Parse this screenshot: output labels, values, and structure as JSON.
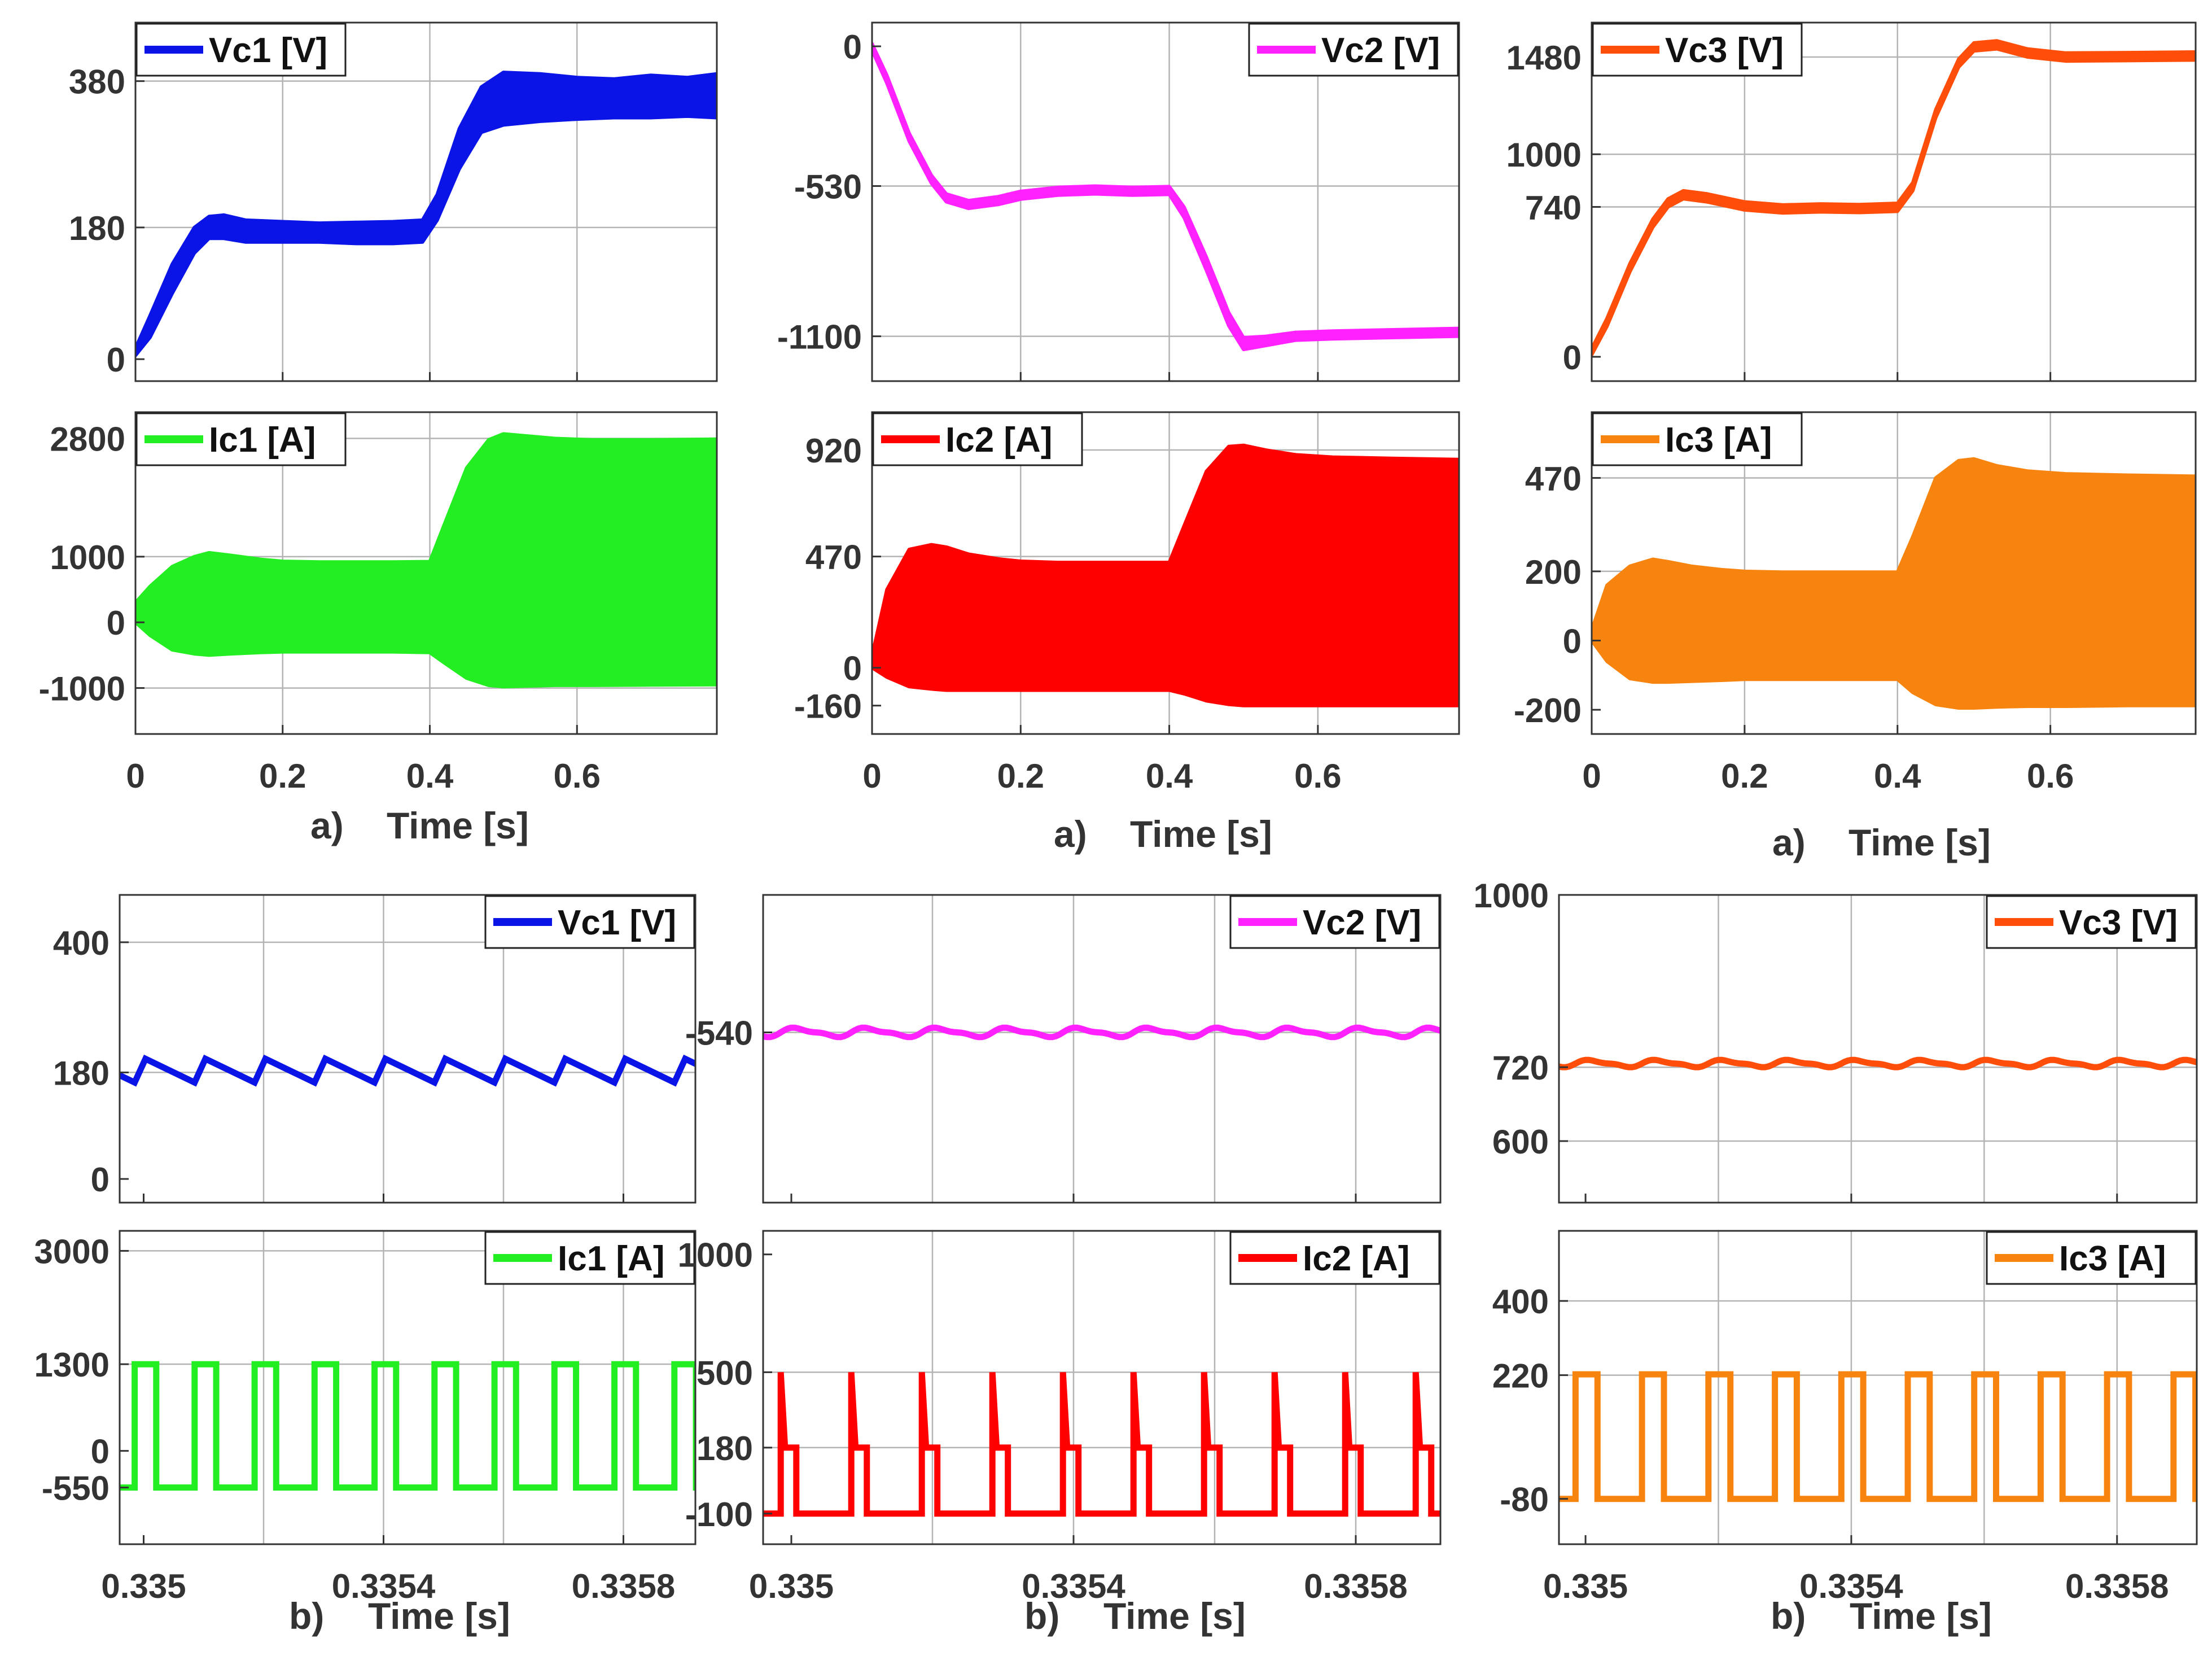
{
  "chart_data": [
    {
      "id": "a-vc1",
      "type": "line",
      "series": [
        {
          "name": "Vc1 [V]",
          "color": "#0a14e6",
          "kind": "envelope"
        }
      ],
      "ylim": [
        -30,
        460
      ],
      "xlim": [
        0,
        0.79
      ],
      "xticks": [
        0,
        0.2,
        0.4,
        0.6
      ],
      "xtick_labels": [
        "0",
        "0.2",
        "0.4",
        "0.6"
      ],
      "yticks": [
        0,
        180,
        380
      ],
      "ytick_labels": [
        "0",
        "180",
        "380"
      ],
      "x_grid": [
        0.2,
        0.4,
        0.6
      ],
      "y_grid": [
        180,
        380
      ],
      "legend": "top-left",
      "envelope": {
        "x": [
          0,
          0.02,
          0.05,
          0.08,
          0.1,
          0.12,
          0.15,
          0.2,
          0.25,
          0.3,
          0.35,
          0.39,
          0.41,
          0.44,
          0.47,
          0.5,
          0.55,
          0.6,
          0.65,
          0.7,
          0.75,
          0.79
        ],
        "lo": [
          5,
          30,
          90,
          145,
          165,
          165,
          160,
          160,
          160,
          158,
          158,
          160,
          190,
          260,
          310,
          320,
          325,
          328,
          330,
          330,
          332,
          330
        ],
        "hi": [
          15,
          60,
          130,
          180,
          195,
          197,
          190,
          188,
          186,
          187,
          188,
          190,
          225,
          315,
          372,
          392,
          390,
          385,
          383,
          388,
          385,
          390
        ]
      }
    },
    {
      "id": "a-vc2",
      "type": "line",
      "series": [
        {
          "name": "Vc2 [V]",
          "color": "#ff22ff",
          "kind": "envelope"
        }
      ],
      "ylim": [
        -1270,
        90
      ],
      "xlim": [
        0,
        0.79
      ],
      "xticks": [
        0,
        0.2,
        0.4,
        0.6
      ],
      "xtick_labels": [
        "0",
        "0.2",
        "0.4",
        "0.6"
      ],
      "yticks": [
        -1100,
        -530,
        0
      ],
      "ytick_labels": [
        "-1100",
        "-530",
        "0"
      ],
      "x_grid": [
        0.2,
        0.4,
        0.6
      ],
      "y_grid": [
        -530,
        -1100
      ],
      "legend": "top-right",
      "envelope": {
        "x": [
          0,
          0.02,
          0.05,
          0.08,
          0.1,
          0.13,
          0.17,
          0.2,
          0.25,
          0.3,
          0.35,
          0.4,
          0.42,
          0.45,
          0.48,
          0.5,
          0.53,
          0.57,
          0.62,
          0.7,
          0.79
        ],
        "lo": [
          -15,
          -140,
          -360,
          -520,
          -590,
          -615,
          -600,
          -580,
          -565,
          -560,
          -565,
          -562,
          -650,
          -850,
          -1060,
          -1150,
          -1135,
          -1115,
          -1110,
          -1105,
          -1100
        ],
        "hi": [
          10,
          -110,
          -330,
          -490,
          -560,
          -585,
          -570,
          -550,
          -535,
          -530,
          -535,
          -532,
          -610,
          -800,
          -1010,
          -1105,
          -1100,
          -1085,
          -1080,
          -1075,
          -1070
        ]
      }
    },
    {
      "id": "a-vc3",
      "type": "line",
      "series": [
        {
          "name": "Vc3 [V]",
          "color": "#ff4d0a",
          "kind": "envelope"
        }
      ],
      "ylim": [
        -120,
        1650
      ],
      "xlim": [
        0,
        0.79
      ],
      "xticks": [
        0,
        0.2,
        0.4,
        0.6
      ],
      "xtick_labels": [
        "0",
        "0.2",
        "0.4",
        "0.6"
      ],
      "yticks": [
        0,
        740,
        1000,
        1480
      ],
      "ytick_labels": [
        "0",
        "740",
        "1000",
        "1480"
      ],
      "x_grid": [
        0.2,
        0.4,
        0.6
      ],
      "y_grid": [
        740,
        1000,
        1480
      ],
      "legend": "top-left",
      "envelope": {
        "x": [
          0,
          0.02,
          0.05,
          0.08,
          0.1,
          0.12,
          0.15,
          0.2,
          0.25,
          0.3,
          0.35,
          0.4,
          0.42,
          0.45,
          0.48,
          0.5,
          0.53,
          0.57,
          0.62,
          0.7,
          0.79
        ],
        "lo": [
          10,
          150,
          420,
          640,
          740,
          780,
          765,
          725,
          710,
          715,
          712,
          718,
          820,
          1180,
          1430,
          1510,
          1520,
          1480,
          1460,
          1462,
          1465
        ],
        "hi": [
          40,
          190,
          460,
          680,
          780,
          820,
          805,
          765,
          750,
          755,
          752,
          758,
          860,
          1220,
          1470,
          1550,
          1560,
          1520,
          1500,
          1502,
          1505
        ]
      }
    },
    {
      "id": "a-ic1",
      "type": "area",
      "series": [
        {
          "name": "Ic1 [A]",
          "color": "#22ee22",
          "kind": "envelope"
        }
      ],
      "ylim": [
        -1700,
        3200
      ],
      "xlim": [
        0,
        0.79
      ],
      "xticks": [
        0,
        0.2,
        0.4,
        0.6
      ],
      "xtick_labels": [
        "0",
        "0.2",
        "0.4",
        "0.6"
      ],
      "yticks": [
        -1000,
        0,
        1000,
        2800
      ],
      "ytick_labels": [
        "-1000",
        "0",
        "1000",
        "2800"
      ],
      "x_grid": [
        0.2,
        0.4,
        0.6
      ],
      "y_grid": [
        -1000,
        1000,
        2800
      ],
      "legend": "top-left",
      "envelope": {
        "x": [
          0,
          0.02,
          0.05,
          0.08,
          0.1,
          0.13,
          0.17,
          0.2,
          0.25,
          0.3,
          0.35,
          0.4,
          0.42,
          0.45,
          0.48,
          0.5,
          0.53,
          0.57,
          0.62,
          0.7,
          0.79
        ],
        "lo": [
          0,
          -200,
          -420,
          -480,
          -500,
          -480,
          -460,
          -450,
          -450,
          -450,
          -450,
          -460,
          -620,
          -850,
          -960,
          -980,
          -970,
          -960,
          -960,
          -955,
          -950
        ],
        "hi": [
          300,
          550,
          850,
          1000,
          1060,
          1020,
          960,
          930,
          920,
          920,
          920,
          925,
          1500,
          2350,
          2780,
          2870,
          2840,
          2800,
          2780,
          2780,
          2790
        ]
      }
    },
    {
      "id": "a-ic2",
      "type": "area",
      "series": [
        {
          "name": "Ic2 [A]",
          "color": "#ff0000",
          "kind": "envelope"
        }
      ],
      "ylim": [
        -280,
        1080
      ],
      "xlim": [
        0,
        0.79
      ],
      "xticks": [
        0,
        0.2,
        0.4,
        0.6
      ],
      "xtick_labels": [
        "0",
        "0.2",
        "0.4",
        "0.6"
      ],
      "yticks": [
        -160,
        0,
        470,
        920
      ],
      "ytick_labels": [
        "-160",
        "0",
        "470",
        "920"
      ],
      "x_grid": [
        0.2,
        0.4,
        0.6
      ],
      "y_grid": [
        470,
        920
      ],
      "legend": "top-left",
      "envelope": {
        "x": [
          0,
          0.02,
          0.05,
          0.08,
          0.1,
          0.13,
          0.17,
          0.2,
          0.25,
          0.3,
          0.35,
          0.4,
          0.42,
          0.45,
          0.48,
          0.5,
          0.53,
          0.57,
          0.62,
          0.7,
          0.79
        ],
        "lo": [
          0,
          -40,
          -80,
          -90,
          -95,
          -95,
          -95,
          -95,
          -95,
          -95,
          -95,
          -95,
          -110,
          -140,
          -155,
          -160,
          -160,
          -160,
          -160,
          -160,
          -160
        ],
        "hi": [
          50,
          330,
          500,
          520,
          510,
          480,
          460,
          450,
          445,
          445,
          445,
          445,
          600,
          830,
          935,
          940,
          920,
          900,
          890,
          885,
          880
        ]
      }
    },
    {
      "id": "a-ic3",
      "type": "area",
      "series": [
        {
          "name": "Ic3 [A]",
          "color": "#f88410",
          "kind": "envelope"
        }
      ],
      "ylim": [
        -270,
        660
      ],
      "xlim": [
        0,
        0.79
      ],
      "xticks": [
        0,
        0.2,
        0.4,
        0.6
      ],
      "xtick_labels": [
        "0",
        "0.2",
        "0.4",
        "0.6"
      ],
      "yticks": [
        -200,
        0,
        200,
        470
      ],
      "ytick_labels": [
        "-200",
        "0",
        "200",
        "470"
      ],
      "x_grid": [
        0.2,
        0.4,
        0.6
      ],
      "y_grid": [
        200,
        470
      ],
      "legend": "top-left",
      "envelope": {
        "x": [
          0,
          0.02,
          0.05,
          0.08,
          0.1,
          0.13,
          0.17,
          0.2,
          0.25,
          0.3,
          0.35,
          0.4,
          0.42,
          0.45,
          0.48,
          0.5,
          0.53,
          0.57,
          0.62,
          0.7,
          0.79
        ],
        "lo": [
          0,
          -60,
          -110,
          -120,
          -120,
          -118,
          -115,
          -112,
          -112,
          -112,
          -112,
          -112,
          -150,
          -185,
          -195,
          -195,
          -192,
          -190,
          -190,
          -188,
          -188
        ],
        "hi": [
          30,
          160,
          215,
          235,
          228,
          215,
          205,
          200,
          198,
          198,
          198,
          198,
          300,
          470,
          520,
          525,
          505,
          490,
          482,
          478,
          475
        ]
      }
    },
    {
      "id": "b-vc1",
      "type": "line",
      "series": [
        {
          "name": "Vc1 [V]",
          "color": "#0a14e6",
          "kind": "sawtooth",
          "base": 163,
          "peak": 203
        }
      ],
      "ylim": [
        -40,
        480
      ],
      "xlim": [
        0.33496,
        0.33592
      ],
      "xticks": [
        0.335,
        0.3354,
        0.3358
      ],
      "xtick_labels": [
        "0.335",
        "0.3354",
        "0.3358"
      ],
      "yticks": [
        0,
        180,
        400
      ],
      "ytick_labels": [
        "0",
        "180",
        "400"
      ],
      "x_grid": [
        0.3352,
        0.3354,
        0.3356,
        0.3358
      ],
      "y_grid": [
        180,
        400
      ],
      "legend": "top-right",
      "period_s": 0.0001
    },
    {
      "id": "b-vc2",
      "type": "line",
      "series": [
        {
          "name": "Vc2 [V]",
          "color": "#ff22ff",
          "kind": "ripple",
          "center": -540,
          "amp": 6
        }
      ],
      "ylim": [
        -800,
        -330
      ],
      "xlim": [
        0.33496,
        0.33592
      ],
      "xticks": [
        0.335,
        0.3354,
        0.3358
      ],
      "xtick_labels": [
        "0.335",
        "0.3354",
        "0.3358"
      ],
      "yticks": [
        -540
      ],
      "ytick_labels": [
        "-540"
      ],
      "x_grid": [
        0.3352,
        0.3354,
        0.3356,
        0.3358
      ],
      "y_grid": [
        -540
      ],
      "legend": "top-right",
      "period_s": 0.0001
    },
    {
      "id": "b-vc3",
      "type": "line",
      "series": [
        {
          "name": "Vc3 [V]",
          "color": "#ff4d0a",
          "kind": "ripple",
          "center": 726,
          "amp": 5
        }
      ],
      "ylim": [
        500,
        1000
      ],
      "xlim": [
        0.33496,
        0.33592
      ],
      "xticks": [
        0.335,
        0.3354,
        0.3358
      ],
      "xtick_labels": [
        "0.335",
        "0.3354",
        "0.3358"
      ],
      "yticks": [
        600,
        720,
        1000
      ],
      "ytick_labels": [
        "600",
        "720",
        "1000"
      ],
      "x_grid": [
        0.3352,
        0.3354,
        0.3356,
        0.3358
      ],
      "y_grid": [
        600,
        720
      ],
      "legend": "top-right",
      "period_s": 0.0001
    },
    {
      "id": "b-ic1",
      "type": "line",
      "series": [
        {
          "name": "Ic1 [A]",
          "color": "#22ee22",
          "kind": "square",
          "high": 1300,
          "low": -550,
          "duty": 0.36
        }
      ],
      "ylim": [
        -1400,
        3300
      ],
      "xlim": [
        0.33496,
        0.33592
      ],
      "xticks": [
        0.335,
        0.3354,
        0.3358
      ],
      "xtick_labels": [
        "0.335",
        "0.3354",
        "0.3358"
      ],
      "yticks": [
        -550,
        0,
        1300,
        3000
      ],
      "ytick_labels": [
        "-550",
        "0",
        "1300",
        "3000"
      ],
      "x_grid": [
        0.3352,
        0.3354,
        0.3356,
        0.3358
      ],
      "y_grid": [
        1300,
        3000
      ],
      "legend": "top-right",
      "period_s": 0.0001
    },
    {
      "id": "b-ic2",
      "type": "line",
      "series": [
        {
          "name": "Ic2 [A]",
          "color": "#ff0000",
          "kind": "stepped",
          "high": 500,
          "mid": 180,
          "low": -100
        }
      ],
      "ylim": [
        -230,
        1100
      ],
      "xlim": [
        0.33496,
        0.33592
      ],
      "xticks": [
        0.335,
        0.3354,
        0.3358
      ],
      "xtick_labels": [
        "0.335",
        "0.3354",
        "0.3358"
      ],
      "yticks": [
        -100,
        180,
        500,
        1000
      ],
      "ytick_labels": [
        "-100",
        "180",
        "500",
        "1000"
      ],
      "x_grid": [
        0.3352,
        0.3354,
        0.3356,
        0.3358
      ],
      "y_grid": [
        180,
        500
      ],
      "legend": "top-right",
      "period_s": 0.0001
    },
    {
      "id": "b-ic3",
      "type": "line",
      "series": [
        {
          "name": "Ic3 [A]",
          "color": "#f88410",
          "kind": "square",
          "high": 222,
          "low": -80,
          "duty": 0.33
        }
      ],
      "ylim": [
        -190,
        570
      ],
      "xlim": [
        0.33496,
        0.33592
      ],
      "xticks": [
        0.335,
        0.3354,
        0.3358
      ],
      "xtick_labels": [
        "0.335",
        "0.3354",
        "0.3358"
      ],
      "yticks": [
        -80,
        220,
        400
      ],
      "ytick_labels": [
        "-80",
        "220",
        "400"
      ],
      "x_grid": [
        0.3352,
        0.3354,
        0.3356,
        0.3358
      ],
      "y_grid": [
        220,
        400
      ],
      "legend": "top-right",
      "period_s": 0.0001
    }
  ],
  "captions": {
    "a": {
      "letter": "a)",
      "label": "Time [s]"
    },
    "b": {
      "letter": "b)",
      "label": "Time [s]"
    }
  },
  "colors": {
    "grid": "#b4b4b4",
    "axis": "#333333",
    "text": "#333333"
  }
}
